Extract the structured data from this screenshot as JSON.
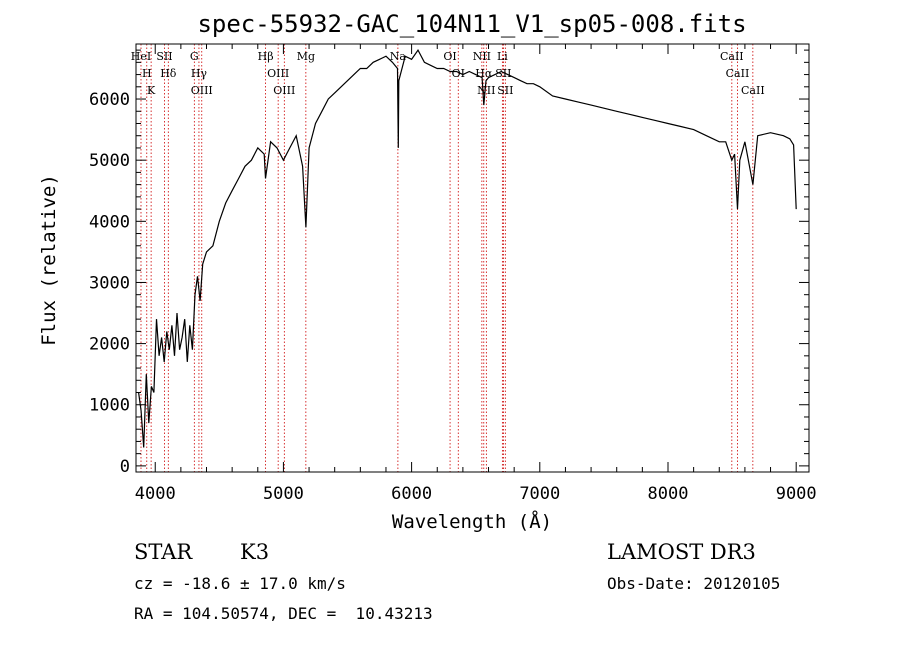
{
  "chart_data": {
    "type": "line",
    "title": "spec-55932-GAC_104N11_V1_sp05-008.fits",
    "xlabel": "Wavelength (Å)",
    "ylabel": "Flux (relative)",
    "xlim": [
      3850,
      9100
    ],
    "ylim": [
      -100,
      6900
    ],
    "xticks": [
      4000,
      5000,
      6000,
      7000,
      8000,
      9000
    ],
    "xtick_labels": [
      "4000",
      "5000",
      "6000",
      "7000",
      "8000",
      "9000"
    ],
    "yticks": [
      0,
      1000,
      2000,
      3000,
      4000,
      5000,
      6000
    ],
    "ytick_labels": [
      "0",
      "1000",
      "2000",
      "3000",
      "4000",
      "5000",
      "6000"
    ],
    "series": [
      {
        "name": "flux",
        "x": [
          3870,
          3890,
          3910,
          3930,
          3950,
          3970,
          3990,
          4010,
          4030,
          4050,
          4070,
          4090,
          4110,
          4130,
          4150,
          4170,
          4190,
          4210,
          4230,
          4250,
          4270,
          4290,
          4310,
          4330,
          4350,
          4370,
          4400,
          4450,
          4500,
          4550,
          4600,
          4650,
          4700,
          4750,
          4800,
          4850,
          4860,
          4900,
          4950,
          5000,
          5050,
          5100,
          5150,
          5175,
          5200,
          5250,
          5300,
          5350,
          5400,
          5450,
          5500,
          5550,
          5600,
          5650,
          5700,
          5750,
          5800,
          5850,
          5890,
          5896,
          5900,
          5950,
          6000,
          6050,
          6100,
          6150,
          6200,
          6250,
          6300,
          6350,
          6400,
          6450,
          6500,
          6550,
          6563,
          6580,
          6600,
          6650,
          6700,
          6750,
          6800,
          6850,
          6900,
          6950,
          7000,
          7100,
          7200,
          7300,
          7400,
          7500,
          7600,
          7700,
          7800,
          7900,
          8000,
          8100,
          8200,
          8300,
          8400,
          8450,
          8498,
          8520,
          8542,
          8560,
          8600,
          8662,
          8700,
          8800,
          8900,
          8950,
          8980,
          9000
        ],
        "values": [
          1200,
          900,
          300,
          1500,
          700,
          1300,
          1200,
          2400,
          1800,
          2100,
          1700,
          2200,
          1900,
          2300,
          1800,
          2500,
          1900,
          2100,
          2400,
          1700,
          2300,
          1900,
          2800,
          3100,
          2700,
          3300,
          3500,
          3600,
          4000,
          4300,
          4500,
          4700,
          4900,
          5000,
          5200,
          5100,
          4700,
          5300,
          5200,
          5000,
          5200,
          5400,
          4900,
          3900,
          5200,
          5600,
          5800,
          6000,
          6100,
          6200,
          6300,
          6400,
          6500,
          6500,
          6600,
          6650,
          6700,
          6600,
          6500,
          5200,
          6300,
          6700,
          6650,
          6800,
          6600,
          6550,
          6500,
          6500,
          6450,
          6450,
          6400,
          6450,
          6400,
          6350,
          5900,
          6300,
          6350,
          6400,
          6450,
          6400,
          6350,
          6300,
          6250,
          6250,
          6200,
          6050,
          6000,
          5950,
          5900,
          5850,
          5800,
          5750,
          5700,
          5650,
          5600,
          5550,
          5500,
          5400,
          5300,
          5300,
          5000,
          5100,
          4200,
          5000,
          5300,
          4600,
          5400,
          5450,
          5400,
          5350,
          5250,
          4200
        ]
      }
    ],
    "lines": [
      {
        "label": "H",
        "x": 3934
      },
      {
        "label": "K",
        "x": 3968
      },
      {
        "label": "HeI",
        "x": 3889
      },
      {
        "label": "Hδ",
        "x": 4102
      },
      {
        "label": "SII",
        "x": 4072
      },
      {
        "label": "G",
        "x": 4305
      },
      {
        "label": "OIII",
        "x": 4363
      },
      {
        "label": "Hγ",
        "x": 4341
      },
      {
        "label": "Hβ",
        "x": 4861
      },
      {
        "label": "OIII",
        "x": 4959
      },
      {
        "label": "OIII",
        "x": 5007
      },
      {
        "label": "Mg",
        "x": 5175
      },
      {
        "label": "Na",
        "x": 5893
      },
      {
        "label": "OI",
        "x": 6300
      },
      {
        "label": "OI",
        "x": 6364
      },
      {
        "label": "NII",
        "x": 6548
      },
      {
        "label": "NII",
        "x": 6583
      },
      {
        "label": "Hα",
        "x": 6563
      },
      {
        "label": "SII",
        "x": 6716
      },
      {
        "label": "SII",
        "x": 6731
      },
      {
        "label": "Li",
        "x": 6708
      },
      {
        "label": "CaII",
        "x": 8498
      },
      {
        "label": "CaII",
        "x": 8542
      },
      {
        "label": "CaII",
        "x": 8662
      }
    ]
  },
  "info": {
    "class_label": "STAR",
    "subclass_label": "K3",
    "cz": "cz = -18.6 ± 17.0 km/s",
    "radec": "RA = 104.50574, DEC =  10.43213",
    "survey": "LAMOST DR3",
    "obs_date": "Obs-Date: 20120105"
  },
  "colors": {
    "line_marker": "#cc0000",
    "spectrum": "#000000",
    "axes": "#000000"
  }
}
